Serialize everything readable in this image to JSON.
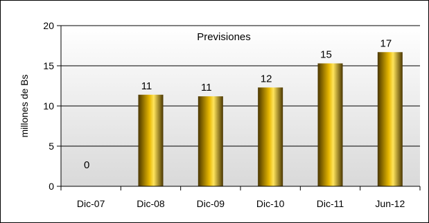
{
  "chart_data": {
    "type": "bar",
    "title": "Previsiones",
    "xlabel": "",
    "ylabel": "millones de Bs",
    "categories": [
      "Dic-07",
      "Dic-08",
      "Dic-09",
      "Dic-10",
      "Dic-11",
      "Jun-12"
    ],
    "values": [
      0,
      11.4,
      11.2,
      12.3,
      15.3,
      16.7
    ],
    "data_labels": [
      "0",
      "11",
      "11",
      "12",
      "15",
      "17"
    ],
    "ylim": [
      0,
      20
    ],
    "yticks": [
      0,
      5,
      10,
      15,
      20
    ],
    "ytick_labels": [
      "0",
      "5",
      "10",
      "15",
      "20"
    ],
    "grid": true,
    "legend": "none",
    "colors": {
      "bar_light": "#ffe45c",
      "bar_mid": "#e8b800",
      "bar_dark": "#4a3600",
      "plot_bg_top": "#ffffff",
      "plot_bg_bottom": "#d9d9d9"
    }
  }
}
